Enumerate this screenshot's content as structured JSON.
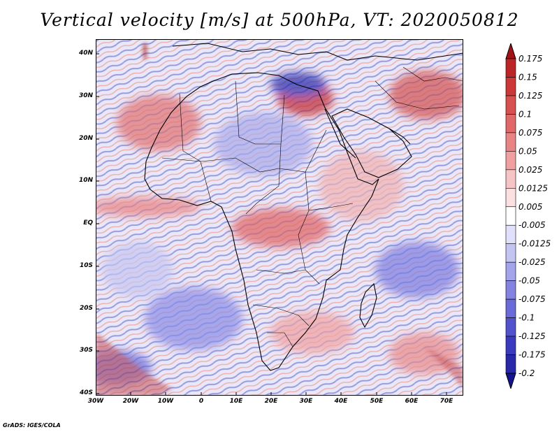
{
  "title": "Vertical velocity [m/s] at 500hPa, VT: 2020050812",
  "credit": "GrADS: IGES/COLA",
  "map": {
    "projection": "lat-lon",
    "lon_range": [
      -30,
      75
    ],
    "lat_range": [
      -40,
      45
    ],
    "colors": {
      "up": "#c0282d",
      "down": "#3c3cc8",
      "coast": "#000000",
      "background": "#f4f4fb"
    }
  },
  "chart_data": {
    "type": "heatmap",
    "title": "Vertical velocity [m/s] at 500hPa, VT: 2020050812",
    "variable": "Vertical velocity",
    "units": "m/s",
    "level": "500hPa",
    "valid_time": "2020050812",
    "x_ticks": [
      "30W",
      "20W",
      "10W",
      "0",
      "10E",
      "20E",
      "30E",
      "40E",
      "50E",
      "60E",
      "70E"
    ],
    "y_ticks": [
      "40S",
      "30S",
      "20S",
      "10S",
      "EQ",
      "10N",
      "20N",
      "30N",
      "40N"
    ],
    "xlim": [
      -30,
      75
    ],
    "ylim": [
      -40,
      45
    ],
    "colorbar": {
      "labels": [
        "0.175",
        "0.15",
        "0.125",
        "0.1",
        "0.075",
        "0.05",
        "0.025",
        "0.0125",
        "0.005",
        "-0.005",
        "-0.0125",
        "-0.025",
        "-0.05",
        "-0.075",
        "-0.1",
        "-0.125",
        "-0.175",
        "-0.2"
      ],
      "colors": [
        "#a01418",
        "#bb2528",
        "#cc3838",
        "#d85050",
        "#e06868",
        "#e88484",
        "#f0a0a0",
        "#f6c4c4",
        "#fae0e0",
        "#ffffff",
        "#e0e0fa",
        "#c4c4f2",
        "#a4a4ea",
        "#8484e0",
        "#6a6ad8",
        "#5252cc",
        "#3a3abf",
        "#2828a8",
        "#141490"
      ]
    }
  }
}
